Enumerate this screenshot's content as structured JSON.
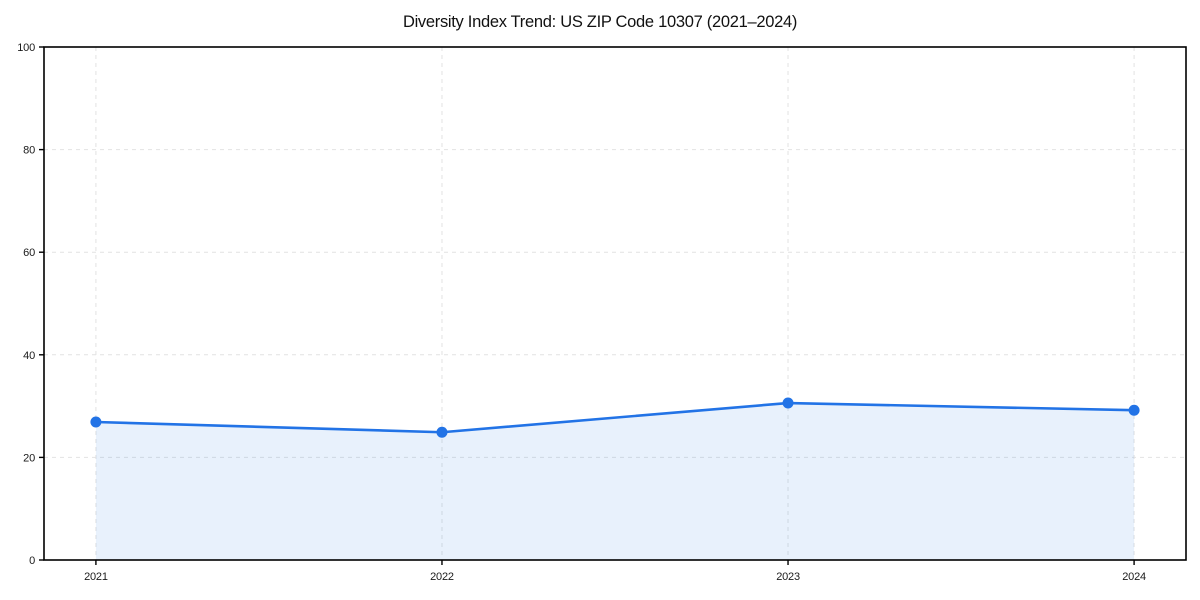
{
  "chart_data": {
    "type": "line",
    "title": "Diversity Index Trend: US ZIP Code 10307 (2021–2024)",
    "x": [
      2021,
      2022,
      2023,
      2024
    ],
    "series": [
      {
        "name": "Diversity Index",
        "values": [
          26.9,
          24.9,
          30.6,
          29.2
        ]
      }
    ],
    "xlabel": "",
    "ylabel": "",
    "xtick_labels": [
      "2021",
      "2022",
      "2023",
      "2024"
    ],
    "ytick_values": [
      0,
      20,
      40,
      60,
      80,
      100
    ],
    "ytick_labels": [
      "0",
      "20",
      "40",
      "60",
      "80",
      "100"
    ],
    "ylim": [
      0,
      100
    ],
    "x_margin_fraction": 0.05,
    "grid": "dashed both axes",
    "legend": "none",
    "colors": {
      "line": "#2273e6",
      "marker": "#2273e6",
      "fill": "rgba(34, 115, 230, 0.10)",
      "grid": "#e2e2e2",
      "spine": "#000000",
      "text": "#1a1a1a"
    },
    "marker": "circle",
    "fill_to_zero": true
  }
}
